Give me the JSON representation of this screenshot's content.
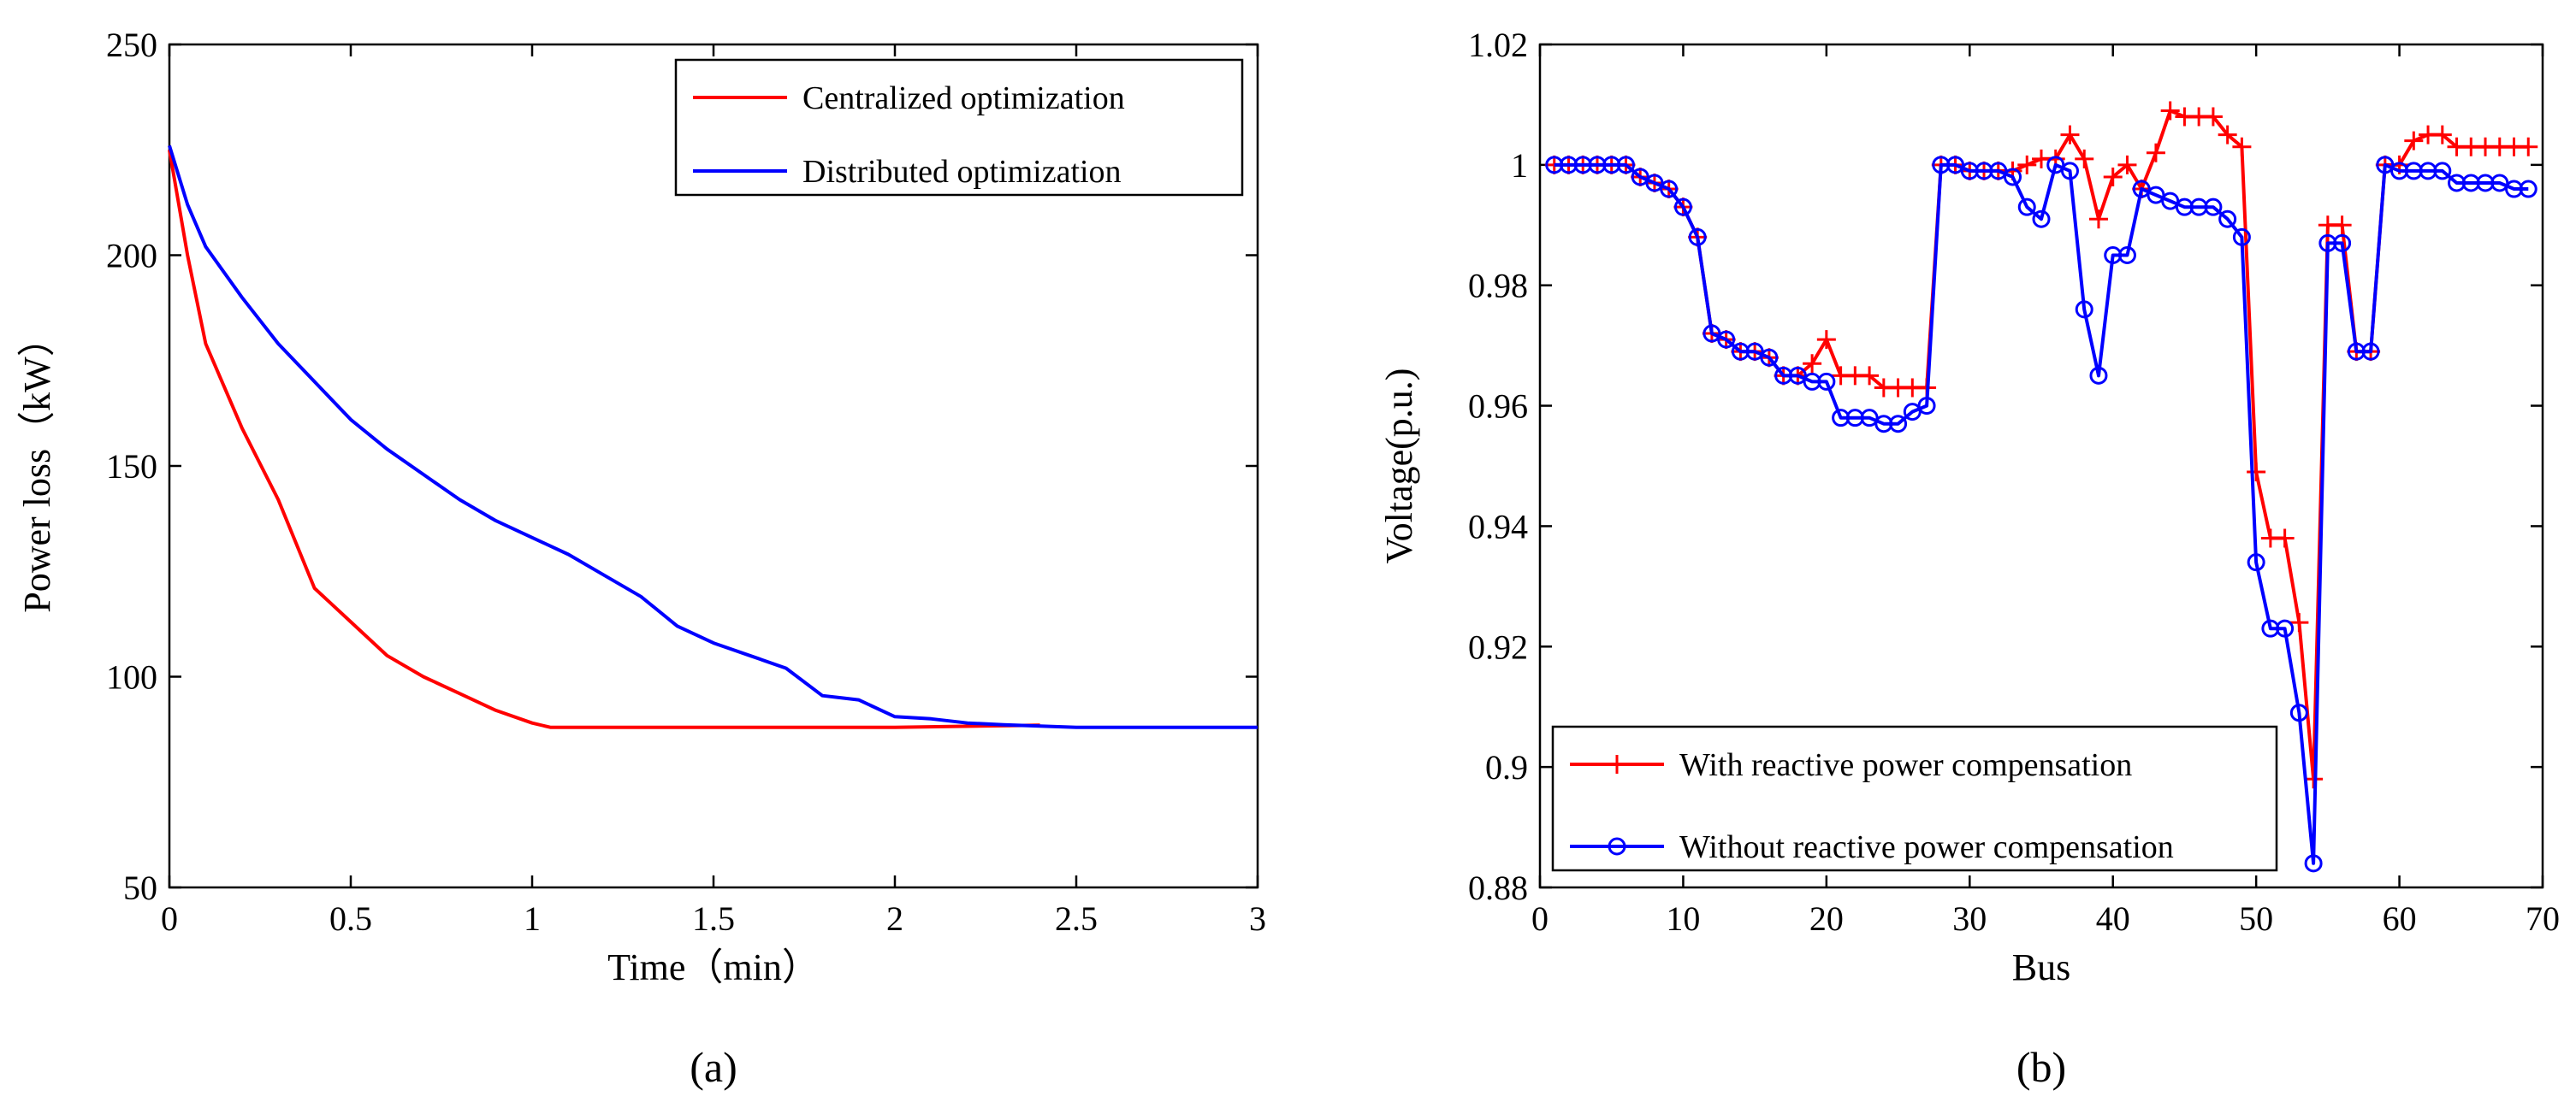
{
  "chart_data": [
    {
      "id": "a",
      "type": "line",
      "panel_label": "(a)",
      "xlabel": "Time（min）",
      "ylabel": "Power loss（kW）",
      "xlim": [
        0,
        3
      ],
      "ylim": [
        50,
        250
      ],
      "xticks": [
        0,
        0.5,
        1,
        1.5,
        2,
        2.5,
        3
      ],
      "xtick_labels": [
        "0",
        "0.5",
        "1",
        "1.5",
        "2",
        "2.5",
        "3"
      ],
      "yticks": [
        50,
        100,
        150,
        200,
        250
      ],
      "ytick_labels": [
        "50",
        "100",
        "150",
        "200",
        "250"
      ],
      "legend_position": "top-right",
      "series": [
        {
          "name": "Centralized optimization",
          "color": "#ff0000",
          "marker": "none",
          "x": [
            0,
            0.05,
            0.1,
            0.15,
            0.2,
            0.3,
            0.4,
            0.5,
            0.6,
            0.7,
            0.8,
            0.9,
            1.0,
            1.05,
            1.2,
            1.5,
            2.0,
            2.4
          ],
          "y": [
            225,
            200,
            179,
            169,
            159,
            142,
            121,
            113,
            105,
            100,
            96,
            92,
            89,
            88,
            88,
            88,
            88,
            88.5
          ]
        },
        {
          "name": "Distributed optimization",
          "color": "#0000ff",
          "marker": "none",
          "x": [
            0,
            0.05,
            0.1,
            0.2,
            0.3,
            0.4,
            0.5,
            0.6,
            0.7,
            0.8,
            0.9,
            1.0,
            1.1,
            1.2,
            1.3,
            1.4,
            1.5,
            1.6,
            1.7,
            1.8,
            1.85,
            1.9,
            2.0,
            2.1,
            2.2,
            2.3,
            2.4,
            2.5,
            3.0
          ],
          "y": [
            226,
            212,
            202,
            190,
            179,
            170,
            161,
            154,
            148,
            142,
            137,
            133,
            129,
            124,
            119,
            112,
            108,
            105,
            102,
            95.5,
            95,
            94.5,
            90.5,
            90,
            89,
            88.6,
            88.3,
            88,
            88
          ]
        }
      ]
    },
    {
      "id": "b",
      "type": "line",
      "panel_label": "(b)",
      "xlabel": "Bus",
      "ylabel": "Voltage(p.u.)",
      "xlim": [
        0,
        70
      ],
      "ylim": [
        0.88,
        1.02
      ],
      "xticks": [
        0,
        10,
        20,
        30,
        40,
        50,
        60,
        70
      ],
      "xtick_labels": [
        "0",
        "10",
        "20",
        "30",
        "40",
        "50",
        "60",
        "70"
      ],
      "yticks": [
        0.88,
        0.9,
        0.92,
        0.94,
        0.96,
        0.98,
        1.0,
        1.02
      ],
      "ytick_labels": [
        "0.88",
        "0.9",
        "0.92",
        "0.94",
        "0.96",
        "0.98",
        "1",
        "1.02"
      ],
      "legend_position": "bottom-left",
      "series": [
        {
          "name": "With reactive power compensation",
          "color": "#ff0000",
          "marker": "plus",
          "x": [
            1,
            2,
            3,
            4,
            5,
            6,
            7,
            8,
            9,
            10,
            11,
            12,
            13,
            14,
            15,
            16,
            17,
            18,
            19,
            20,
            21,
            22,
            23,
            24,
            25,
            26,
            27,
            28,
            29,
            30,
            31,
            32,
            33,
            34,
            35,
            36,
            37,
            38,
            39,
            40,
            41,
            42,
            43,
            44,
            45,
            46,
            47,
            48,
            49,
            50,
            51,
            52,
            53,
            54,
            55,
            56,
            57,
            58,
            59,
            60,
            61,
            62,
            63,
            64,
            65,
            66,
            67,
            68,
            69
          ],
          "y": [
            1.0,
            1.0,
            1.0,
            1.0,
            1.0,
            1.0,
            0.998,
            0.997,
            0.996,
            0.993,
            0.988,
            0.972,
            0.971,
            0.969,
            0.969,
            0.968,
            0.965,
            0.965,
            0.967,
            0.971,
            0.965,
            0.965,
            0.965,
            0.963,
            0.963,
            0.963,
            0.963,
            1.0,
            1.0,
            0.999,
            0.999,
            0.999,
            0.999,
            1.0,
            1.001,
            1.001,
            1.005,
            1.001,
            0.991,
            0.998,
            1.0,
            0.996,
            1.002,
            1.009,
            1.008,
            1.008,
            1.008,
            1.005,
            1.003,
            0.949,
            0.938,
            0.938,
            0.924,
            0.898,
            0.99,
            0.99,
            0.969,
            0.969,
            1.0,
            1.0,
            1.004,
            1.005,
            1.005,
            1.003,
            1.003,
            1.003,
            1.003,
            1.003,
            1.003
          ]
        },
        {
          "name": "Without reactive power compensation",
          "color": "#0000ff",
          "marker": "circle",
          "x": [
            1,
            2,
            3,
            4,
            5,
            6,
            7,
            8,
            9,
            10,
            11,
            12,
            13,
            14,
            15,
            16,
            17,
            18,
            19,
            20,
            21,
            22,
            23,
            24,
            25,
            26,
            27,
            28,
            29,
            30,
            31,
            32,
            33,
            34,
            35,
            36,
            37,
            38,
            39,
            40,
            41,
            42,
            43,
            44,
            45,
            46,
            47,
            48,
            49,
            50,
            51,
            52,
            53,
            54,
            55,
            56,
            57,
            58,
            59,
            60,
            61,
            62,
            63,
            64,
            65,
            66,
            67,
            68,
            69
          ],
          "y": [
            1.0,
            1.0,
            1.0,
            1.0,
            1.0,
            1.0,
            0.998,
            0.997,
            0.996,
            0.993,
            0.988,
            0.972,
            0.971,
            0.969,
            0.969,
            0.968,
            0.965,
            0.965,
            0.964,
            0.964,
            0.958,
            0.958,
            0.958,
            0.957,
            0.957,
            0.959,
            0.96,
            1.0,
            1.0,
            0.999,
            0.999,
            0.999,
            0.998,
            0.993,
            0.991,
            1.0,
            0.999,
            0.976,
            0.965,
            0.985,
            0.985,
            0.996,
            0.995,
            0.994,
            0.993,
            0.993,
            0.993,
            0.991,
            0.988,
            0.934,
            0.923,
            0.923,
            0.909,
            0.884,
            0.987,
            0.987,
            0.969,
            0.969,
            1.0,
            0.999,
            0.999,
            0.999,
            0.999,
            0.997,
            0.997,
            0.997,
            0.997,
            0.996,
            0.996
          ]
        }
      ]
    }
  ]
}
